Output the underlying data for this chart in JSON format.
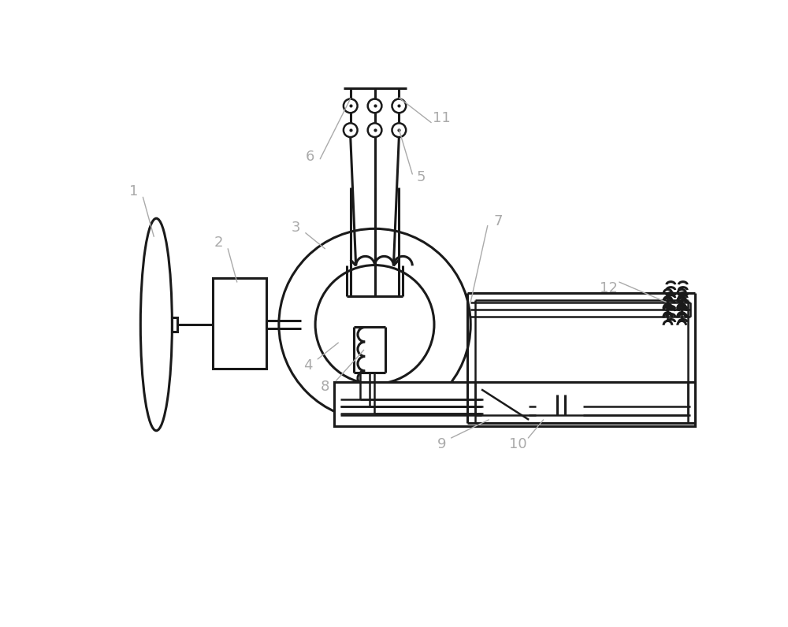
{
  "bg_color": "#ffffff",
  "line_color": "#1a1a1a",
  "label_color": "#aaaaaa",
  "lw": 1.8,
  "lw2": 2.2,
  "label_fontsize": 13,
  "fig_w": 10.0,
  "fig_h": 7.96,
  "xlim": [
    0,
    10
  ],
  "ylim": [
    0,
    7.96
  ]
}
